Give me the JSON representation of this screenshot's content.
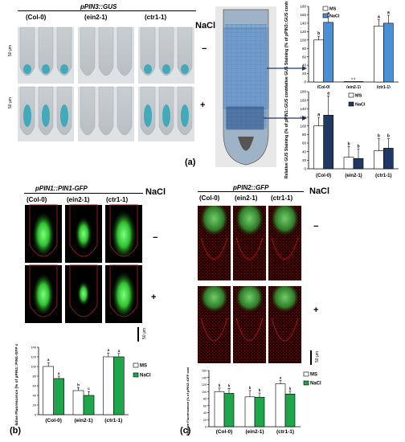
{
  "figure": {
    "panel_a": {
      "construct": "pPIN3::GUS",
      "genotypes": [
        "(Col-0)",
        "(ein2-1)",
        "(ctr1-1)"
      ],
      "treatment": "NaCl",
      "minus": "−",
      "plus": "+",
      "scale": "50 μm",
      "label": "(a)",
      "na": "n.d."
    },
    "panel_b": {
      "construct": "pPIN1::PIN1-GFP",
      "genotypes": [
        "(Col-0)",
        "(ein2-1)",
        "(ctr1-1)"
      ],
      "treatment": "NaCl",
      "minus": "−",
      "plus": "+",
      "scale": "50 μm",
      "label": "(b)"
    },
    "panel_c": {
      "construct": "pPIN2::GFP",
      "genotypes": [
        "(Col-0)",
        "(ein2-1)",
        "(ctr1-1)"
      ],
      "treatment": "NaCl",
      "minus": "−",
      "plus": "+",
      "scale": "50 μm",
      "label": "(c)"
    }
  },
  "chart_data": [
    {
      "id": "a-top",
      "type": "bar",
      "categories": [
        "(Col-0)",
        "(ein2-1)",
        "(ctr1-1)"
      ],
      "series": [
        {
          "name": "MS",
          "values": [
            100,
            1,
            133
          ],
          "errors": [
            9,
            0,
            15
          ],
          "letters": [
            "b",
            "",
            "a"
          ],
          "color": "#ffffff"
        },
        {
          "name": "NaCl",
          "values": [
            142,
            1,
            140
          ],
          "errors": [
            15,
            0,
            19
          ],
          "letters": [
            "a",
            "",
            "a"
          ],
          "color": "#4a90d9"
        }
      ],
      "ylabel": "Relative GUS Staining (% of pPIN3::GUS control)",
      "ylim": [
        0,
        180
      ],
      "yticks": [
        0,
        20,
        40,
        60,
        80,
        100,
        120,
        140,
        160,
        180
      ],
      "annotation": "n.d."
    },
    {
      "id": "a-bottom",
      "type": "bar",
      "categories": [
        "(Col-0)",
        "(ein2-1)",
        "(ctr1-1)"
      ],
      "series": [
        {
          "name": "MS",
          "values": [
            100,
            27,
            42
          ],
          "errors": [
            20,
            25,
            28
          ],
          "letters": [
            "a",
            "b",
            "b"
          ],
          "color": "#ffffff"
        },
        {
          "name": "NaCl",
          "values": [
            125,
            24,
            48
          ],
          "errors": [
            45,
            22,
            22
          ],
          "letters": [
            "a",
            "b",
            "b"
          ],
          "color": "#1f3864"
        }
      ],
      "ylabel": "Relative GUS Staining (% of pPIN1::GUS control)",
      "ylim": [
        0,
        180
      ],
      "yticks": [
        0,
        20,
        40,
        60,
        80,
        100,
        120,
        140,
        160,
        180
      ]
    },
    {
      "id": "b",
      "type": "bar",
      "categories": [
        "(Col-0)",
        "(ein2-1)",
        "(ctr1-1)"
      ],
      "series": [
        {
          "name": "MS",
          "values": [
            100,
            50,
            120
          ],
          "errors": [
            8,
            6,
            8
          ],
          "letters": [
            "a",
            "b",
            "a"
          ],
          "color": "#ffffff"
        },
        {
          "name": "NaCl",
          "values": [
            75,
            40,
            120
          ],
          "errors": [
            5,
            8,
            7
          ],
          "letters": [
            "a",
            "c",
            "a"
          ],
          "color": "#1ea64b"
        }
      ],
      "ylabel": "Relative Fluorescence (% of pPIN1::PIN1-GFP control)",
      "ylim": [
        0,
        140
      ],
      "yticks": [
        0,
        20,
        40,
        60,
        80,
        100,
        120,
        140
      ]
    },
    {
      "id": "c",
      "type": "bar",
      "categories": [
        "(Col-0)",
        "(ein2-1)",
        "(ctr1-1)"
      ],
      "series": [
        {
          "name": "MS",
          "values": [
            100,
            85,
            122
          ],
          "errors": [
            10,
            18,
            10
          ],
          "letters": [
            "b",
            "b",
            "a"
          ],
          "color": "#ffffff"
        },
        {
          "name": "NaCl",
          "values": [
            95,
            84,
            93
          ],
          "errors": [
            14,
            12,
            8
          ],
          "letters": [
            "b",
            "b",
            "b"
          ],
          "color": "#1ea64b"
        }
      ],
      "ylabel": "Relative Fluorescence (% of pPIN2::GFP control)",
      "ylim": [
        0,
        160
      ],
      "yticks": [
        0,
        20,
        40,
        60,
        80,
        100,
        120,
        140,
        160
      ]
    }
  ]
}
